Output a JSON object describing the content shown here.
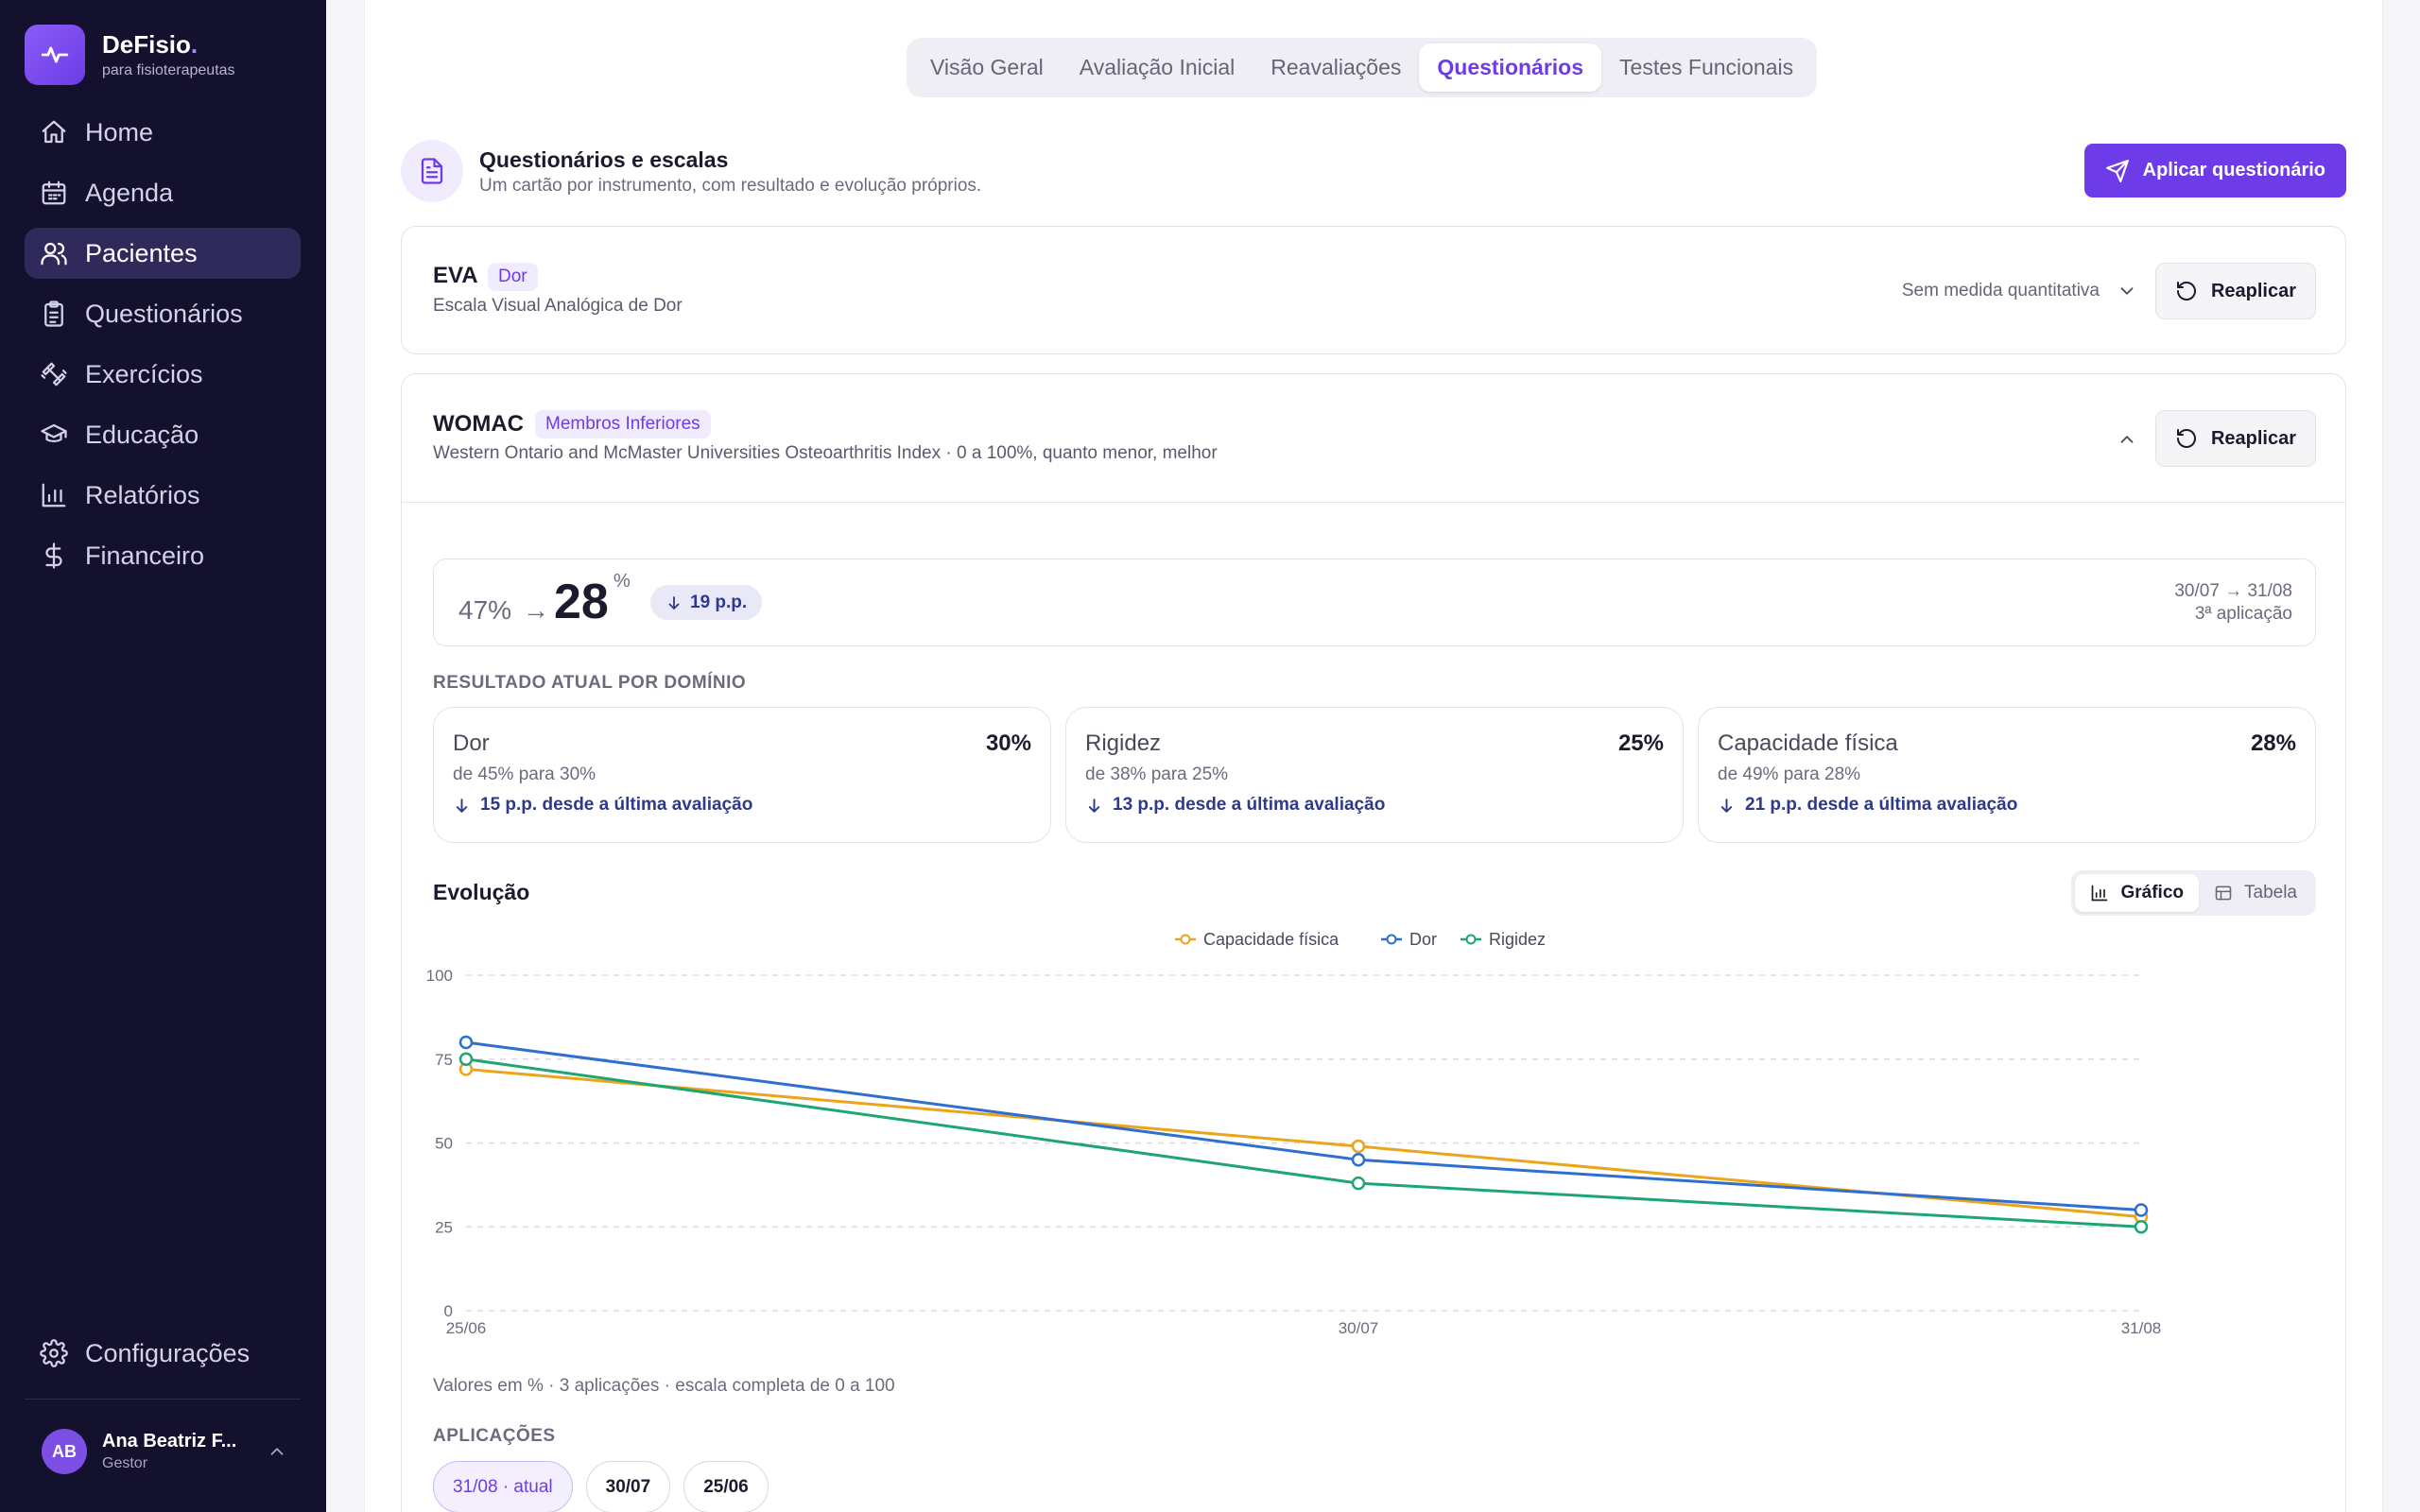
{
  "brand": {
    "name": "DeFisio",
    "dot": ".",
    "subtitle": "para fisioterapeutas"
  },
  "nav": [
    {
      "label": "Home",
      "icon": "home-icon",
      "active": false
    },
    {
      "label": "Agenda",
      "icon": "calendar-icon",
      "active": false
    },
    {
      "label": "Pacientes",
      "icon": "users-icon",
      "active": true
    },
    {
      "label": "Questionários",
      "icon": "clipboard-icon",
      "active": false
    },
    {
      "label": "Exercícios",
      "icon": "dumbbell-icon",
      "active": false
    },
    {
      "label": "Educação",
      "icon": "graduation-cap-icon",
      "active": false
    },
    {
      "label": "Relatórios",
      "icon": "bar-chart-icon",
      "active": false
    },
    {
      "label": "Financeiro",
      "icon": "dollar-icon",
      "active": false
    }
  ],
  "settings_label": "Configurações",
  "user": {
    "initials": "AB",
    "name": "Ana Beatriz F...",
    "role": "Gestor"
  },
  "tabs": [
    "Visão Geral",
    "Avaliação Inicial",
    "Reavaliações",
    "Questionários",
    "Testes Funcionais"
  ],
  "active_tab": "Questionários",
  "section": {
    "title": "Questionários e escalas",
    "subtitle": "Um cartão por instrumento, com resultado e evolução próprios.",
    "apply_button": "Aplicar questionário"
  },
  "eva": {
    "name": "EVA",
    "tag": "Dor",
    "description": "Escala Visual Analógica de Dor",
    "status": "Sem medida quantitativa",
    "reapply": "Reaplicar"
  },
  "womac": {
    "name": "WOMAC",
    "tag": "Membros Inferiores",
    "description": "Western Ontario and McMaster Universities Osteoarthritis Index · 0 a 100%, quanto menor, melhor",
    "reapply": "Reaplicar",
    "summary": {
      "from": "47%",
      "arrow": "→",
      "to": "28",
      "unit": "%",
      "delta": "19 p.p.",
      "date_range": "30/07 → 31/08",
      "application": "3ª aplicação"
    },
    "domains_label": "RESULTADO ATUAL POR DOMÍNIO",
    "domains": [
      {
        "name": "Dor",
        "value": "30%",
        "from_text": "de 45% para 30%",
        "delta": "15 p.p. desde a última avaliação"
      },
      {
        "name": "Rigidez",
        "value": "25%",
        "from_text": "de 38% para 25%",
        "delta": "13 p.p. desde a última avaliação"
      },
      {
        "name": "Capacidade física",
        "value": "28%",
        "from_text": "de 49% para 28%",
        "delta": "21 p.p. desde a última avaliação"
      }
    ],
    "evolution_title": "Evolução",
    "view_toggle": {
      "chart": "Gráfico",
      "table": "Tabela",
      "active": "chart"
    },
    "chart_note": "Valores em % · 3 aplicações · escala completa de 0 a 100",
    "applications_label": "APLICAÇÕES",
    "applications": [
      "31/08 · atual",
      "30/07",
      "25/06"
    ]
  },
  "chart_data": {
    "type": "line",
    "x": [
      "25/06",
      "30/07",
      "31/08"
    ],
    "ylim": [
      0,
      100
    ],
    "yticks": [
      0,
      25,
      50,
      75,
      100
    ],
    "grid": true,
    "legend_position": "top-center",
    "series": [
      {
        "name": "Capacidade física",
        "color": "#eaa51a",
        "values": [
          72,
          49,
          28
        ]
      },
      {
        "name": "Dor",
        "color": "#2f6fd0",
        "values": [
          80,
          45,
          30
        ]
      },
      {
        "name": "Rigidez",
        "color": "#1ea672",
        "values": [
          75,
          38,
          25
        ]
      }
    ]
  }
}
